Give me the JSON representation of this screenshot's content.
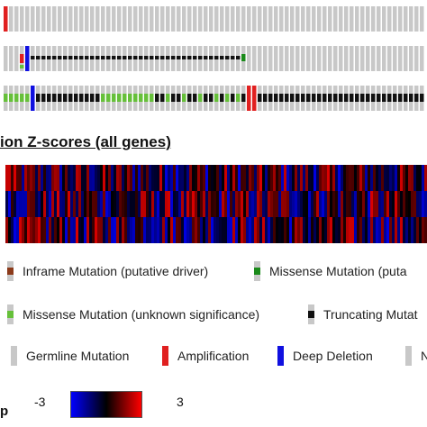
{
  "heatmap_section": {
    "title": "ion Z-scores (all genes)"
  },
  "legend": {
    "items": [
      {
        "label": "Inframe Mutation (putative driver)",
        "color": "#8b3a1a",
        "marker": "mid"
      },
      {
        "label": "Missense Mutation (puta",
        "color": "#1a8a1a",
        "marker": "mid"
      },
      {
        "label": "Missense Mutation (unknown significance)",
        "color": "#66c03a",
        "marker": "mid"
      },
      {
        "label": "Truncating Mutat",
        "color": "#111111",
        "marker": "mid"
      },
      {
        "label": "Germline Mutation",
        "color": "#c8c8c8",
        "marker": "none"
      },
      {
        "label": "Amplification",
        "color": "#e02020",
        "marker": "full"
      },
      {
        "label": "Deep Deletion",
        "color": "#1010e0",
        "marker": "full"
      },
      {
        "label": "N",
        "color": "#c8c8c8",
        "marker": "none"
      }
    ]
  },
  "color_scale": {
    "min_label": "-3",
    "max_label": "3",
    "truncated_label": "p",
    "low_color": "#0000ff",
    "mid_color": "#000000",
    "high_color": "#ff0000"
  },
  "colors": {
    "empty_cell": "#c8c8c8",
    "amplification": "#e02020",
    "deep_deletion": "#1010e0",
    "truncating": "#111111",
    "missense_unknown": "#66c03a",
    "missense_driver": "#1a8a1a",
    "inframe": "#8b3a1a"
  }
}
